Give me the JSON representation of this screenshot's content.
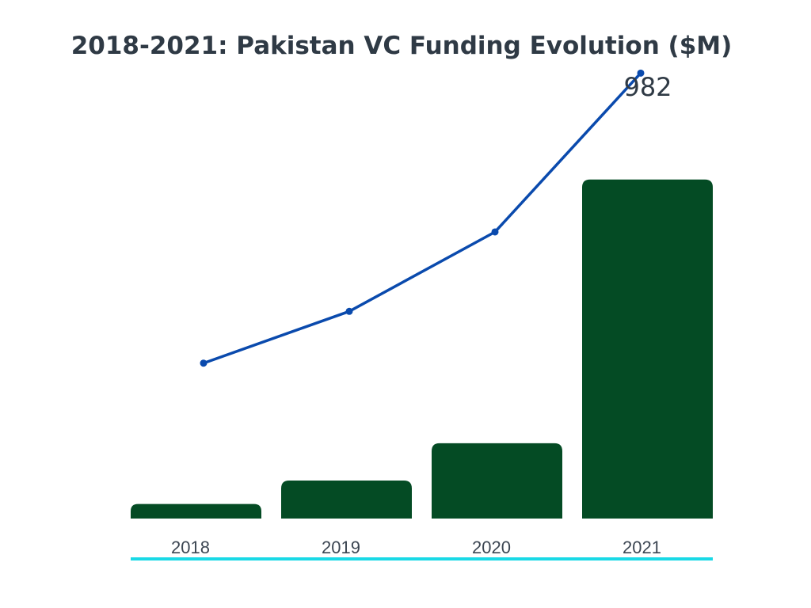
{
  "chart_data": {
    "type": "bar",
    "title": "2018-2021: Pakistan VC Funding Evolution ($M)",
    "categories": [
      "2018",
      "2019",
      "2020",
      "2021"
    ],
    "bar_series": {
      "values": [
        42,
        110,
        218,
        982
      ]
    },
    "line_series": {
      "values": [
        450,
        600,
        830,
        1290
      ]
    },
    "data_labels": [
      {
        "category": "2021",
        "text": "982"
      }
    ],
    "ylim": [
      0,
      1300
    ],
    "grid": false,
    "legend": "none",
    "colors": {
      "bar": "#044b24",
      "line": "#0a4aad",
      "axis_line": "#19d9e6",
      "title": "#2f3a45",
      "tick": "#3c4652"
    }
  }
}
